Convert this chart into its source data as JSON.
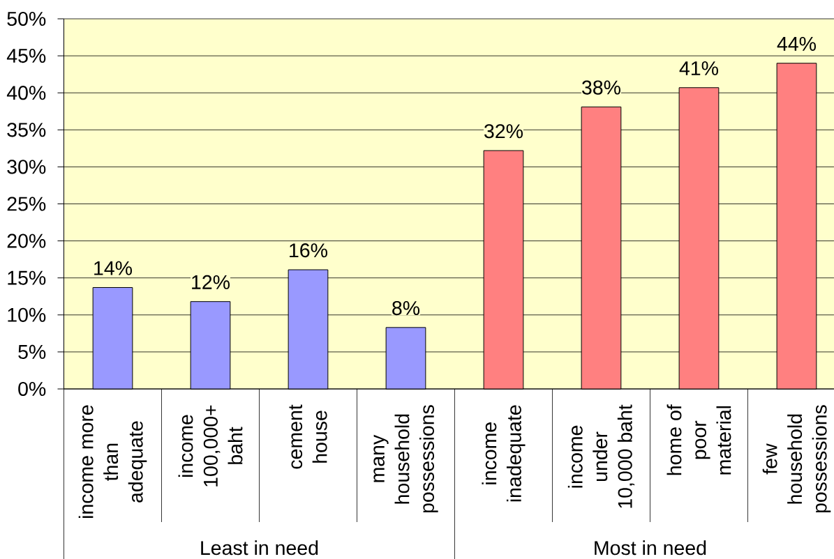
{
  "chart_data": {
    "type": "bar",
    "categories": [
      "income more than adequate",
      "income 100,000+ baht",
      "cement house",
      "many household possessions",
      "income inadequate",
      "income under 10,000 baht",
      "home of poor material",
      "few household possessions"
    ],
    "values": [
      13.7,
      11.8,
      16.1,
      8.3,
      32.2,
      38.1,
      40.7,
      44.0
    ],
    "colors": [
      "#9999ff",
      "#9999ff",
      "#9999ff",
      "#9999ff",
      "#ff8080",
      "#ff8080",
      "#ff8080",
      "#ff8080"
    ],
    "value_labels": [
      "14%",
      "12%",
      "16%",
      "8%",
      "32%",
      "38%",
      "41%",
      "44%"
    ],
    "ylim": [
      0,
      50
    ],
    "yticks": [
      {
        "value": 0,
        "label": "0%"
      },
      {
        "value": 5,
        "label": "5%"
      },
      {
        "value": 10,
        "label": "10%"
      },
      {
        "value": 15,
        "label": "15%"
      },
      {
        "value": 20,
        "label": "20%"
      },
      {
        "value": 25,
        "label": "25%"
      },
      {
        "value": 30,
        "label": "30%"
      },
      {
        "value": 35,
        "label": "35%"
      },
      {
        "value": 40,
        "label": "40%"
      },
      {
        "value": 45,
        "label": "45%"
      },
      {
        "value": 50,
        "label": "50%"
      }
    ],
    "grid": "y",
    "annotations": [
      "Least in need",
      "Most in need"
    ]
  }
}
